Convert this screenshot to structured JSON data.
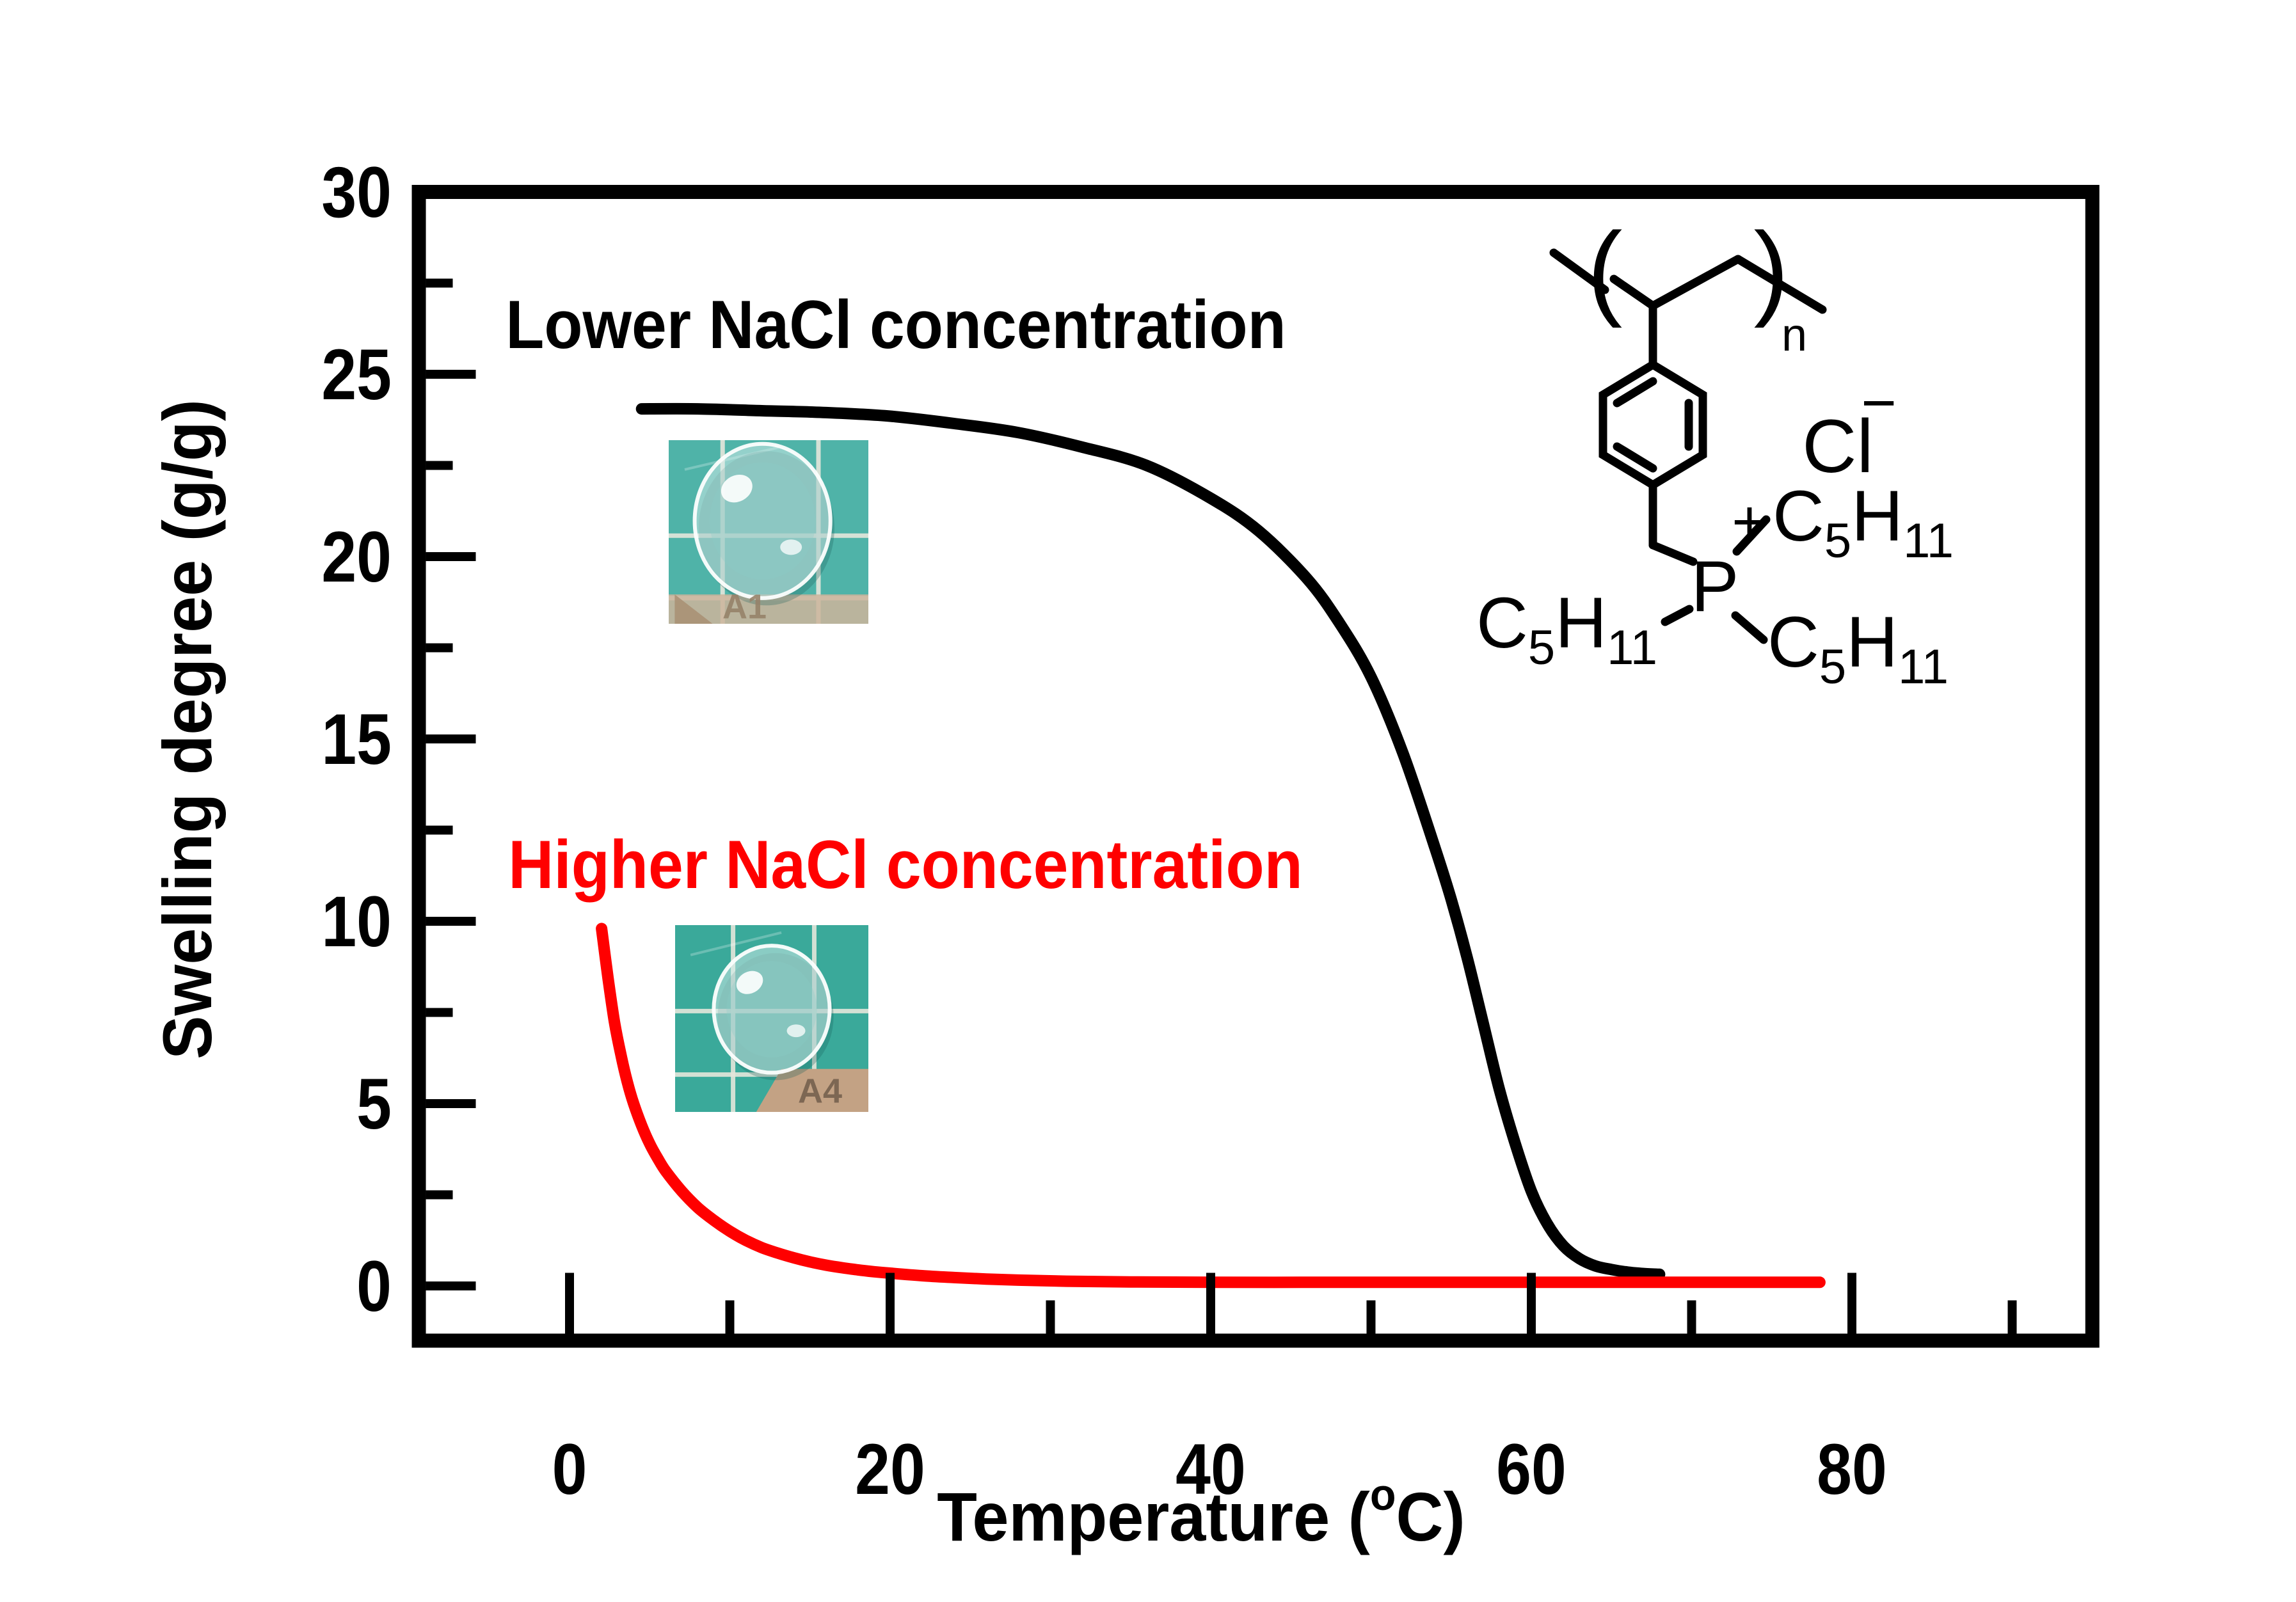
{
  "chart_data": {
    "type": "line",
    "title": "",
    "xlabel": "Temperature (°C)",
    "xlabel_parts": {
      "pre": "Temperature (",
      "sup": "o",
      "post": "C)"
    },
    "ylabel": "Swelling degree (g/g)",
    "xlim": [
      -9.4,
      95
    ],
    "ylim": [
      -1.5,
      30
    ],
    "x_ticks": [
      0,
      20,
      40,
      60,
      80
    ],
    "x_minor_ticks": [
      10,
      30,
      50,
      70,
      90
    ],
    "y_ticks": [
      0,
      5,
      10,
      15,
      20,
      25,
      30
    ],
    "y_minor_ticks": [
      2.5,
      7.5,
      12.5,
      17.5,
      22.5,
      27.5
    ],
    "grid": false,
    "legend_position": "inline-annotations",
    "series": [
      {
        "name": "Lower NaCl concentration",
        "color": "#000000",
        "points": [
          [
            4.5,
            24.05
          ],
          [
            8,
            24.05
          ],
          [
            12,
            24.0
          ],
          [
            16,
            23.95
          ],
          [
            20,
            23.85
          ],
          [
            24,
            23.65
          ],
          [
            28,
            23.4
          ],
          [
            32,
            23.0
          ],
          [
            36,
            22.5
          ],
          [
            40,
            21.6
          ],
          [
            43,
            20.7
          ],
          [
            46,
            19.4
          ],
          [
            48,
            18.2
          ],
          [
            50,
            16.7
          ],
          [
            52,
            14.6
          ],
          [
            54,
            12.0
          ],
          [
            55,
            10.6
          ],
          [
            56,
            9.0
          ],
          [
            57,
            7.2
          ],
          [
            58,
            5.4
          ],
          [
            59,
            3.9
          ],
          [
            60,
            2.6
          ],
          [
            61,
            1.7
          ],
          [
            62,
            1.1
          ],
          [
            63,
            0.75
          ],
          [
            64,
            0.55
          ],
          [
            65,
            0.45
          ],
          [
            66,
            0.38
          ],
          [
            67,
            0.34
          ],
          [
            68,
            0.32
          ]
        ]
      },
      {
        "name": "Higher NaCl concentration",
        "color": "#ff0000",
        "points": [
          [
            2,
            9.8
          ],
          [
            2.4,
            8.45
          ],
          [
            2.8,
            7.25
          ],
          [
            3.2,
            6.35
          ],
          [
            3.6,
            5.6
          ],
          [
            4,
            5.0
          ],
          [
            4.5,
            4.4
          ],
          [
            5,
            3.9
          ],
          [
            5.5,
            3.5
          ],
          [
            6,
            3.15
          ],
          [
            7,
            2.6
          ],
          [
            8,
            2.15
          ],
          [
            9,
            1.8
          ],
          [
            10,
            1.5
          ],
          [
            11,
            1.25
          ],
          [
            12,
            1.05
          ],
          [
            13,
            0.9
          ],
          [
            14,
            0.77
          ],
          [
            15,
            0.66
          ],
          [
            16,
            0.57
          ],
          [
            17,
            0.5
          ],
          [
            18,
            0.44
          ],
          [
            19,
            0.39
          ],
          [
            20,
            0.35
          ],
          [
            22,
            0.28
          ],
          [
            24,
            0.23
          ],
          [
            26,
            0.19
          ],
          [
            28,
            0.16
          ],
          [
            31,
            0.13
          ],
          [
            35,
            0.11
          ],
          [
            40,
            0.1
          ],
          [
            46,
            0.1
          ],
          [
            52,
            0.1
          ],
          [
            58,
            0.1
          ],
          [
            64,
            0.1
          ],
          [
            70,
            0.1
          ],
          [
            78,
            0.1
          ]
        ]
      }
    ]
  },
  "photos": [
    {
      "label": "A1"
    },
    {
      "label": "A4"
    }
  ],
  "structure": {
    "pentyl": "C5H11",
    "phosphorus": "P",
    "charge_positive": "+",
    "counterion": "Cl",
    "charge_negative": "−",
    "repeat_subscript": "n"
  },
  "colors": {
    "lower_curve": "#000000",
    "higher_curve": "#ff0000",
    "axis": "#000000",
    "mat_teal": "#45b1a4",
    "label_tan": "#c8ab8e"
  }
}
